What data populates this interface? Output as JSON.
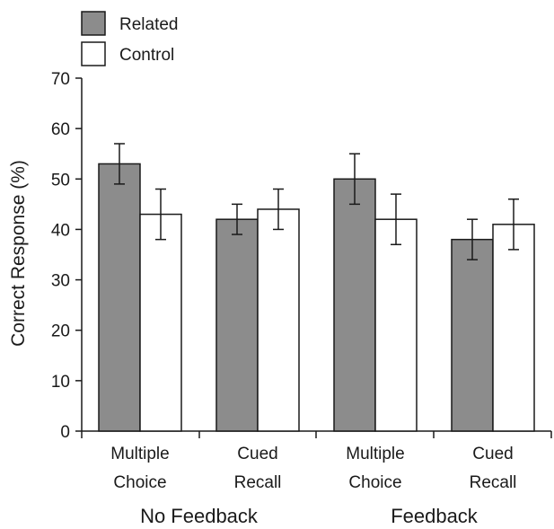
{
  "chart_data": {
    "type": "bar",
    "xlabel": "",
    "ylabel": "Correct Response (%)",
    "ylim": [
      0,
      70
    ],
    "yticks": [
      0,
      10,
      20,
      30,
      40,
      50,
      60,
      70
    ],
    "legend_position": "top-left",
    "categories": [
      {
        "line1": "Multiple",
        "line2": "Choice"
      },
      {
        "line1": "Cued",
        "line2": "Recall"
      },
      {
        "line1": "Multiple",
        "line2": "Choice"
      },
      {
        "line1": "Cued",
        "line2": "Recall"
      }
    ],
    "groups": [
      {
        "label": "No Feedback",
        "category_indices": [
          0,
          1
        ]
      },
      {
        "label": "Feedback",
        "category_indices": [
          2,
          3
        ]
      }
    ],
    "series": [
      {
        "name": "Related",
        "color": "#8c8c8c",
        "values": [
          53,
          42,
          50,
          38
        ],
        "error": [
          4,
          3,
          5,
          4
        ]
      },
      {
        "name": "Control",
        "color": "#ffffff",
        "values": [
          43,
          44,
          42,
          41
        ],
        "error": [
          5,
          4,
          5,
          5
        ]
      }
    ]
  }
}
